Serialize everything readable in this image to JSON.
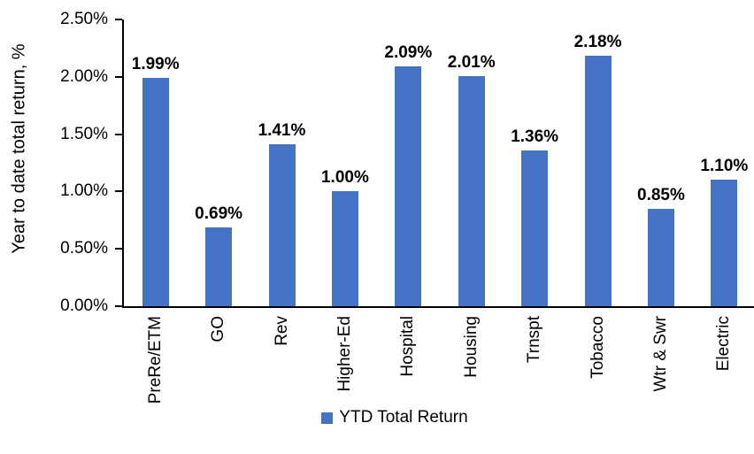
{
  "chart_data": {
    "type": "bar",
    "title": "",
    "xlabel": "",
    "ylabel": "Year to date total return, %",
    "categories": [
      "PreRe/ETM",
      "GO",
      "Rev",
      "Higher-Ed",
      "Hospital",
      "Housing",
      "Trnspt",
      "Tobacco",
      "Wtr & Swr",
      "Electric"
    ],
    "values": [
      1.99,
      0.69,
      1.41,
      1.0,
      2.09,
      2.01,
      1.36,
      2.18,
      0.85,
      1.1
    ],
    "value_labels": [
      "1.99%",
      "0.69%",
      "1.41%",
      "1.00%",
      "2.09%",
      "2.01%",
      "1.36%",
      "2.18%",
      "0.85%",
      "1.10%"
    ],
    "ylim": [
      0,
      2.5
    ],
    "yticks": [
      {
        "value": 0.0,
        "label": "0.00%"
      },
      {
        "value": 0.5,
        "label": "0.50%"
      },
      {
        "value": 1.0,
        "label": "1.00%"
      },
      {
        "value": 1.5,
        "label": "1.50%"
      },
      {
        "value": 2.0,
        "label": "2.00%"
      },
      {
        "value": 2.5,
        "label": "2.50%"
      }
    ],
    "grid": false,
    "legend_position": "bottom",
    "legend_label": "YTD Total Return",
    "bar_color": "#4472C4",
    "axis_color": "#000000",
    "text_color": "#000000"
  }
}
